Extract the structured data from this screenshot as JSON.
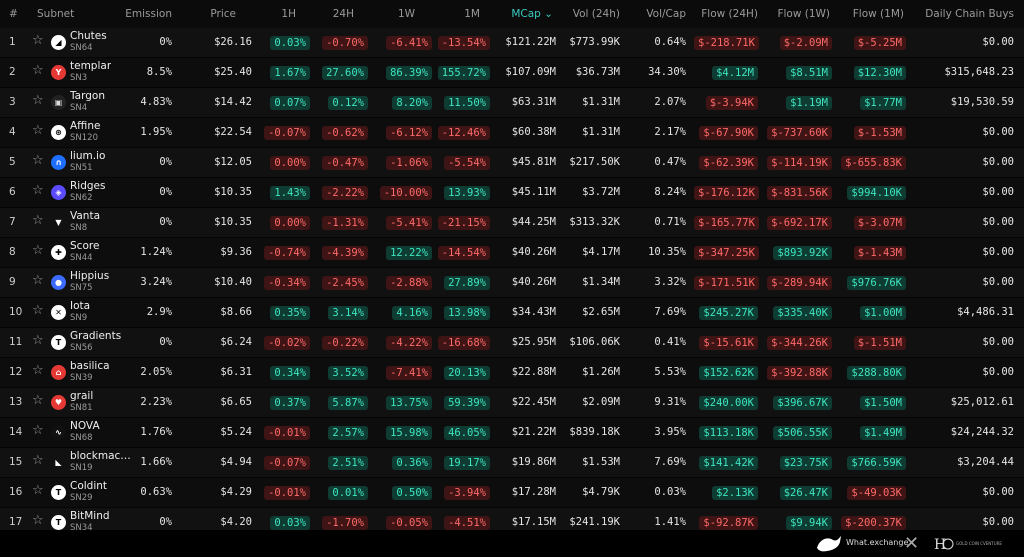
{
  "header": {
    "idx": "#",
    "subnet": "Subnet",
    "emission": "Emission",
    "price": "Price",
    "h1": "1H",
    "h24": "24H",
    "w1": "1W",
    "m1": "1M",
    "mcap": "MCap ⌄",
    "vol": "Vol (24h)",
    "volcap": "Vol/Cap",
    "flow24": "Flow (24H)",
    "flow1w": "Flow (1W)",
    "flow1m": "Flow (1M)",
    "buys": "Daily Chain Buys"
  },
  "colors": {
    "positive": "#3ee6c0",
    "negative": "#ff6a6a",
    "accent": "#3bc9c0"
  },
  "rows": [
    {
      "idx": "1",
      "name": "Chutes",
      "sn": "SN64",
      "logo_icon": "chutes-icon",
      "logo_bg": "#ffffff",
      "logo_fg": "#000",
      "logo_glyph": "◢",
      "emission": "0%",
      "price": "$26.16",
      "h1": "0.03%",
      "h24": "-0.70%",
      "w1": "-6.41%",
      "m1": "-13.54%",
      "mcap": "$121.22M",
      "vol": "$773.99K",
      "volcap": "0.64%",
      "f24": "$-218.71K",
      "f1w": "$-2.09M",
      "f1m": "$-5.25M",
      "buys": "$0.00"
    },
    {
      "idx": "2",
      "name": "templar",
      "sn": "SN3",
      "logo_icon": "templar-icon",
      "logo_bg": "#e53935",
      "logo_fg": "#fff",
      "logo_glyph": "Y",
      "emission": "8.5%",
      "price": "$25.40",
      "h1": "1.67%",
      "h24": "27.60%",
      "w1": "86.39%",
      "m1": "155.72%",
      "mcap": "$107.09M",
      "vol": "$36.73M",
      "volcap": "34.30%",
      "f24": "$4.12M",
      "f1w": "$8.51M",
      "f1m": "$12.30M",
      "buys": "$315,648.23"
    },
    {
      "idx": "3",
      "name": "Targon",
      "sn": "SN4",
      "logo_icon": "targon-icon",
      "logo_bg": "#222",
      "logo_fg": "#ddd",
      "logo_glyph": "▣",
      "emission": "4.83%",
      "price": "$14.42",
      "h1": "0.07%",
      "h24": "0.12%",
      "w1": "8.20%",
      "m1": "11.50%",
      "mcap": "$63.31M",
      "vol": "$1.31M",
      "volcap": "2.07%",
      "f24": "$-3.94K",
      "f1w": "$1.19M",
      "f1m": "$1.77M",
      "buys": "$19,530.59"
    },
    {
      "idx": "4",
      "name": "Affine",
      "sn": "SN120",
      "logo_icon": "affine-icon",
      "logo_bg": "#ffffff",
      "logo_fg": "#000",
      "logo_glyph": "⊛",
      "emission": "1.95%",
      "price": "$22.54",
      "h1": "-0.07%",
      "h24": "-0.62%",
      "w1": "-6.12%",
      "m1": "-12.46%",
      "mcap": "$60.38M",
      "vol": "$1.31M",
      "volcap": "2.17%",
      "f24": "$-67.90K",
      "f1w": "$-737.60K",
      "f1m": "$-1.53M",
      "buys": "$0.00"
    },
    {
      "idx": "5",
      "name": "lium.io",
      "sn": "SN51",
      "logo_icon": "lium-icon",
      "logo_bg": "#1e6fff",
      "logo_fg": "#fff",
      "logo_glyph": "∩",
      "emission": "0%",
      "price": "$12.05",
      "h1": "0.00%",
      "h24": "-0.47%",
      "w1": "-1.06%",
      "m1": "-5.54%",
      "mcap": "$45.81M",
      "vol": "$217.50K",
      "volcap": "0.47%",
      "f24": "$-62.39K",
      "f1w": "$-114.19K",
      "f1m": "$-655.83K",
      "buys": "$0.00"
    },
    {
      "idx": "6",
      "name": "Ridges",
      "sn": "SN62",
      "logo_icon": "ridges-icon",
      "logo_bg": "#5b4bff",
      "logo_fg": "#fff",
      "logo_glyph": "◈",
      "emission": "0%",
      "price": "$10.35",
      "h1": "1.43%",
      "h24": "-2.22%",
      "w1": "-10.00%",
      "m1": "13.93%",
      "mcap": "$45.11M",
      "vol": "$3.72M",
      "volcap": "8.24%",
      "f24": "$-176.12K",
      "f1w": "$-831.56K",
      "f1m": "$994.10K",
      "buys": "$0.00"
    },
    {
      "idx": "7",
      "name": "Vanta",
      "sn": "SN8",
      "logo_icon": "vanta-icon",
      "logo_bg": "#111",
      "logo_fg": "#fff",
      "logo_glyph": "▼",
      "emission": "0%",
      "price": "$10.35",
      "h1": "0.00%",
      "h24": "-1.31%",
      "w1": "-5.41%",
      "m1": "-21.15%",
      "mcap": "$44.25M",
      "vol": "$313.32K",
      "volcap": "0.71%",
      "f24": "$-165.77K",
      "f1w": "$-692.17K",
      "f1m": "$-3.07M",
      "buys": "$0.00"
    },
    {
      "idx": "8",
      "name": "Score",
      "sn": "SN44",
      "logo_icon": "score-icon",
      "logo_bg": "#ffffff",
      "logo_fg": "#000",
      "logo_glyph": "✚",
      "emission": "1.24%",
      "price": "$9.36",
      "h1": "-0.74%",
      "h24": "-4.39%",
      "w1": "12.22%",
      "m1": "-14.54%",
      "mcap": "$40.26M",
      "vol": "$4.17M",
      "volcap": "10.35%",
      "f24": "$-347.25K",
      "f1w": "$893.92K",
      "f1m": "$-1.43M",
      "buys": "$0.00"
    },
    {
      "idx": "9",
      "name": "Hippius",
      "sn": "SN75",
      "logo_icon": "hippius-icon",
      "logo_bg": "#3b6bff",
      "logo_fg": "#fff",
      "logo_glyph": "●",
      "emission": "3.24%",
      "price": "$10.40",
      "h1": "-0.34%",
      "h24": "-2.45%",
      "w1": "-2.88%",
      "m1": "27.89%",
      "mcap": "$40.26M",
      "vol": "$1.34M",
      "volcap": "3.32%",
      "f24": "$-171.51K",
      "f1w": "$-289.94K",
      "f1m": "$976.76K",
      "buys": "$0.00"
    },
    {
      "idx": "10",
      "name": "Iota",
      "sn": "SN9",
      "logo_icon": "iota-icon",
      "logo_bg": "#ffffff",
      "logo_fg": "#000",
      "logo_glyph": "✕",
      "emission": "2.9%",
      "price": "$8.66",
      "h1": "0.35%",
      "h24": "3.14%",
      "w1": "4.16%",
      "m1": "13.98%",
      "mcap": "$34.43M",
      "vol": "$2.65M",
      "volcap": "7.69%",
      "f24": "$245.27K",
      "f1w": "$335.40K",
      "f1m": "$1.00M",
      "buys": "$4,486.31"
    },
    {
      "idx": "11",
      "name": "Gradients",
      "sn": "SN56",
      "logo_icon": "gradients-icon",
      "logo_bg": "#ffffff",
      "logo_fg": "#000",
      "logo_glyph": "T",
      "emission": "0%",
      "price": "$6.24",
      "h1": "-0.02%",
      "h24": "-0.22%",
      "w1": "-4.22%",
      "m1": "-16.68%",
      "mcap": "$25.95M",
      "vol": "$106.06K",
      "volcap": "0.41%",
      "f24": "$-15.61K",
      "f1w": "$-344.26K",
      "f1m": "$-1.51M",
      "buys": "$0.00"
    },
    {
      "idx": "12",
      "name": "basilica",
      "sn": "SN39",
      "logo_icon": "basilica-icon",
      "logo_bg": "#e53935",
      "logo_fg": "#fff",
      "logo_glyph": "⌂",
      "emission": "2.05%",
      "price": "$6.31",
      "h1": "0.34%",
      "h24": "3.52%",
      "w1": "-7.41%",
      "m1": "20.13%",
      "mcap": "$22.88M",
      "vol": "$1.26M",
      "volcap": "5.53%",
      "f24": "$152.62K",
      "f1w": "$-392.88K",
      "f1m": "$288.80K",
      "buys": "$0.00"
    },
    {
      "idx": "13",
      "name": "grail",
      "sn": "SN81",
      "logo_icon": "grail-icon",
      "logo_bg": "#e53935",
      "logo_fg": "#fff",
      "logo_glyph": "♥",
      "emission": "2.23%",
      "price": "$6.65",
      "h1": "0.37%",
      "h24": "5.87%",
      "w1": "13.75%",
      "m1": "59.39%",
      "mcap": "$22.45M",
      "vol": "$2.09M",
      "volcap": "9.31%",
      "f24": "$240.00K",
      "f1w": "$396.67K",
      "f1m": "$1.50M",
      "buys": "$25,012.61"
    },
    {
      "idx": "14",
      "name": "NOVA",
      "sn": "SN68",
      "logo_icon": "nova-icon",
      "logo_bg": "#111",
      "logo_fg": "#fff",
      "logo_glyph": "∿",
      "emission": "1.76%",
      "price": "$5.24",
      "h1": "-0.01%",
      "h24": "2.57%",
      "w1": "15.98%",
      "m1": "46.05%",
      "mcap": "$21.22M",
      "vol": "$839.18K",
      "volcap": "3.95%",
      "f24": "$113.18K",
      "f1w": "$506.55K",
      "f1m": "$1.49M",
      "buys": "$24,244.32"
    },
    {
      "idx": "15",
      "name": "blockmachi...",
      "sn": "SN19",
      "logo_icon": "blockmachine-icon",
      "logo_bg": "#111",
      "logo_fg": "#fff",
      "logo_glyph": "◣",
      "emission": "1.66%",
      "price": "$4.94",
      "h1": "-0.07%",
      "h24": "2.51%",
      "w1": "0.36%",
      "m1": "19.17%",
      "mcap": "$19.86M",
      "vol": "$1.53M",
      "volcap": "7.69%",
      "f24": "$141.42K",
      "f1w": "$23.75K",
      "f1m": "$766.59K",
      "buys": "$3,204.44"
    },
    {
      "idx": "16",
      "name": "Coldint",
      "sn": "SN29",
      "logo_icon": "coldint-icon",
      "logo_bg": "#ffffff",
      "logo_fg": "#000",
      "logo_glyph": "T",
      "emission": "0.63%",
      "price": "$4.29",
      "h1": "-0.01%",
      "h24": "0.01%",
      "w1": "0.50%",
      "m1": "-3.94%",
      "mcap": "$17.28M",
      "vol": "$4.79K",
      "volcap": "0.03%",
      "f24": "$2.13K",
      "f1w": "$26.47K",
      "f1m": "$-49.03K",
      "buys": "$0.00"
    },
    {
      "idx": "17",
      "name": "BitMind",
      "sn": "SN34",
      "logo_icon": "bitmind-icon",
      "logo_bg": "#ffffff",
      "logo_fg": "#000",
      "logo_glyph": "T",
      "emission": "0%",
      "price": "$4.20",
      "h1": "0.03%",
      "h24": "-1.70%",
      "w1": "-0.05%",
      "m1": "-4.51%",
      "mcap": "$17.15M",
      "vol": "$241.19K",
      "volcap": "1.41%",
      "f24": "$-92.87K",
      "f1w": "$9.94K",
      "f1m": "$-200.37K",
      "buys": "$0.00"
    }
  ],
  "footer": {
    "brand1": "What.exchange",
    "separator": "✕",
    "brand2": "GOLD COIN CVENTURE"
  }
}
